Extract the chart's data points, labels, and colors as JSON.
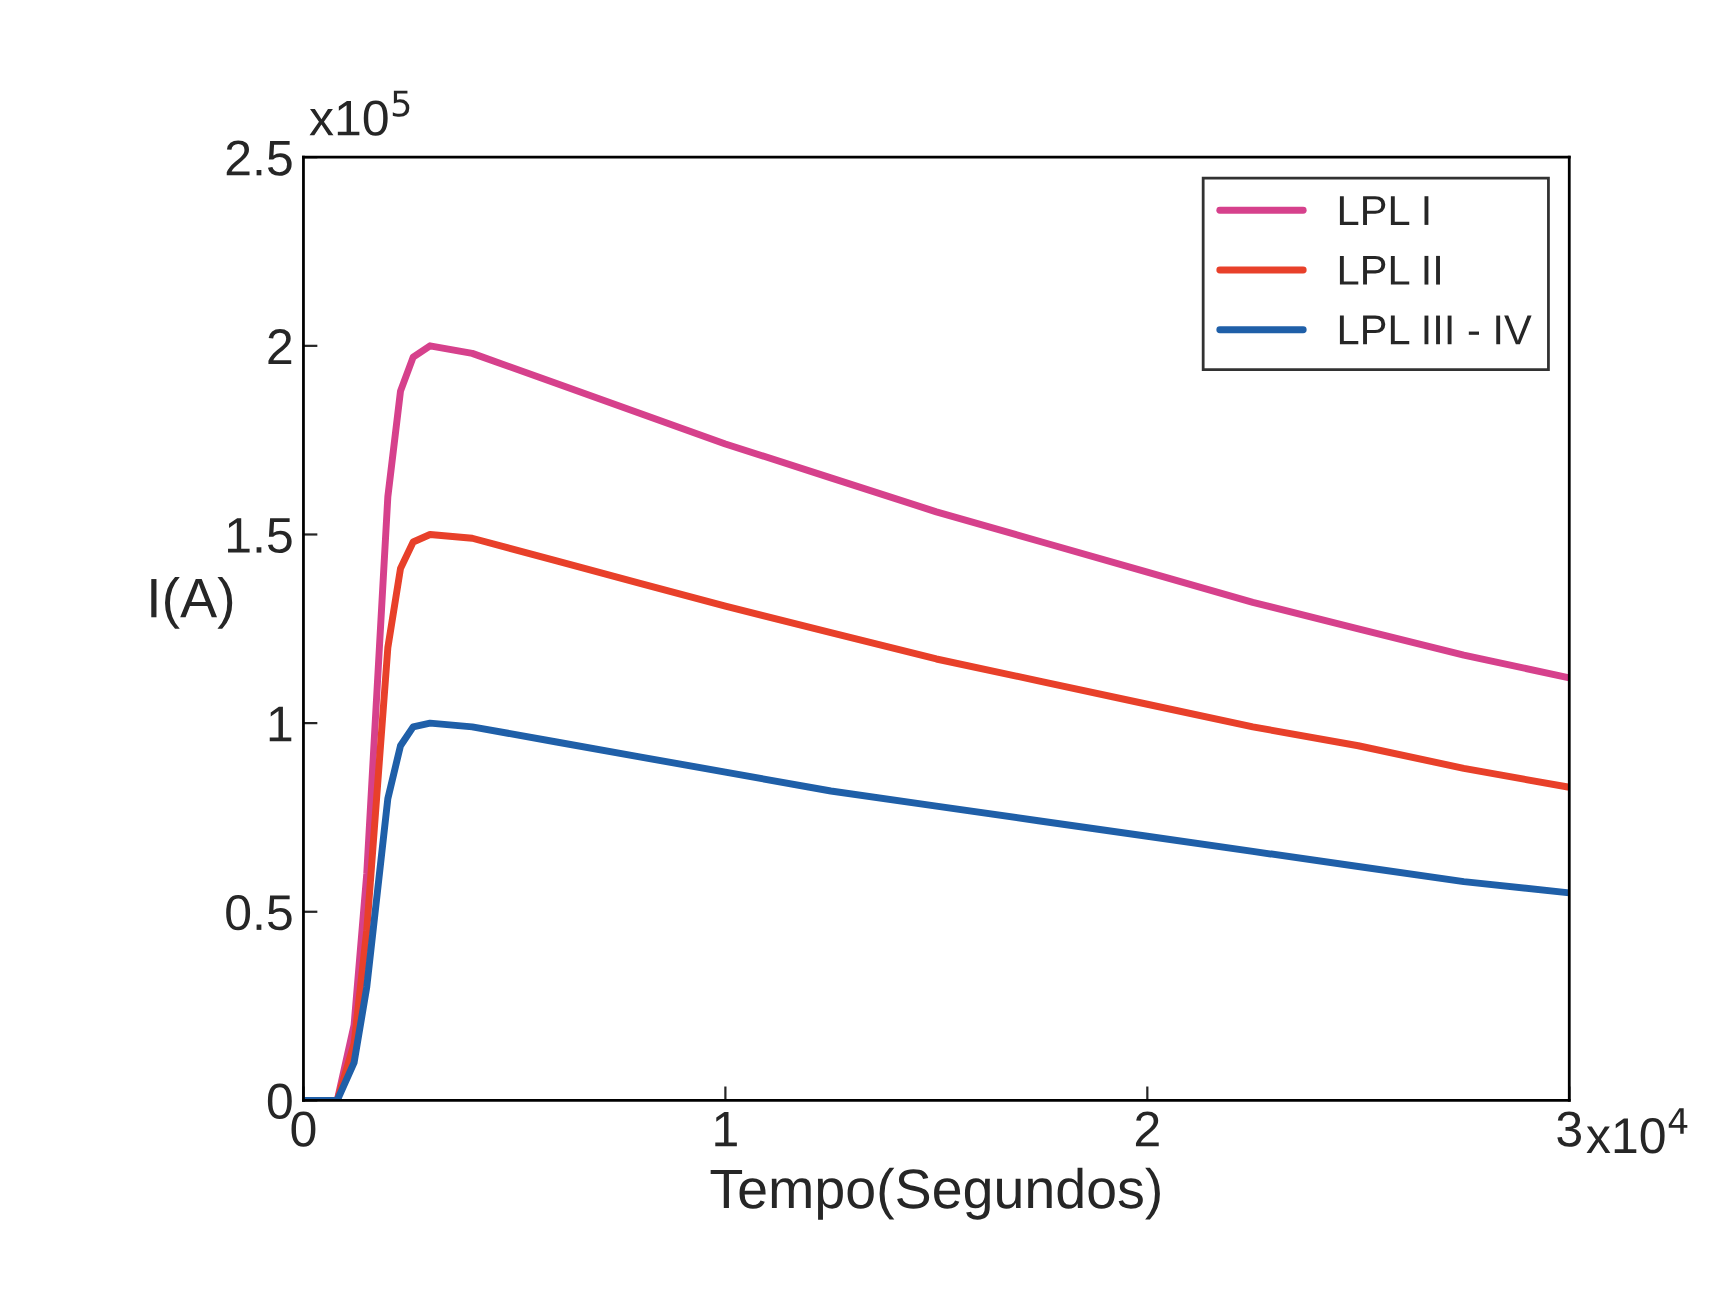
{
  "chart_data": {
    "type": "line",
    "xlabel": "Tempo(Segundos)",
    "ylabel": "I(A)",
    "annotations": [
      "x10$^{5}$",
      "x10$^{4}$"
    ],
    "x": [
      0,
      0.08,
      0.12,
      0.15,
      0.18,
      0.2,
      0.23,
      0.26,
      0.3,
      0.4,
      0.6,
      0.8,
      1.0,
      1.25,
      1.5,
      1.75,
      2.0,
      2.25,
      2.5,
      2.75,
      3.0
    ],
    "series": [
      {
        "name": "LPL I",
        "color": "#d6418c",
        "values": [
          0,
          0,
          0.2,
          0.6,
          1.2,
          1.6,
          1.88,
          1.97,
          2.0,
          1.98,
          1.9,
          1.82,
          1.74,
          1.65,
          1.56,
          1.48,
          1.4,
          1.32,
          1.25,
          1.18,
          1.12
        ]
      },
      {
        "name": "LPL II",
        "color": "#e8402a",
        "values": [
          0,
          0,
          0.15,
          0.45,
          0.9,
          1.2,
          1.41,
          1.48,
          1.5,
          1.49,
          1.43,
          1.37,
          1.31,
          1.24,
          1.17,
          1.11,
          1.05,
          0.99,
          0.94,
          0.88,
          0.83
        ]
      },
      {
        "name": "LPL III - IV",
        "color": "#1f5fa8",
        "values": [
          0,
          0,
          0.1,
          0.3,
          0.6,
          0.8,
          0.94,
          0.99,
          1.0,
          0.99,
          0.95,
          0.91,
          0.87,
          0.82,
          0.78,
          0.74,
          0.7,
          0.66,
          0.62,
          0.58,
          0.55
        ]
      }
    ],
    "xlim": [
      0,
      3
    ],
    "xticks": [
      0,
      1,
      2,
      3
    ],
    "ylim": [
      0,
      2.5
    ],
    "yticks": [
      0,
      0.5,
      1,
      1.5,
      2,
      2.5
    ],
    "legend": "top right",
    "grid": false,
    "marker": "none",
    "line_style": "solid"
  }
}
